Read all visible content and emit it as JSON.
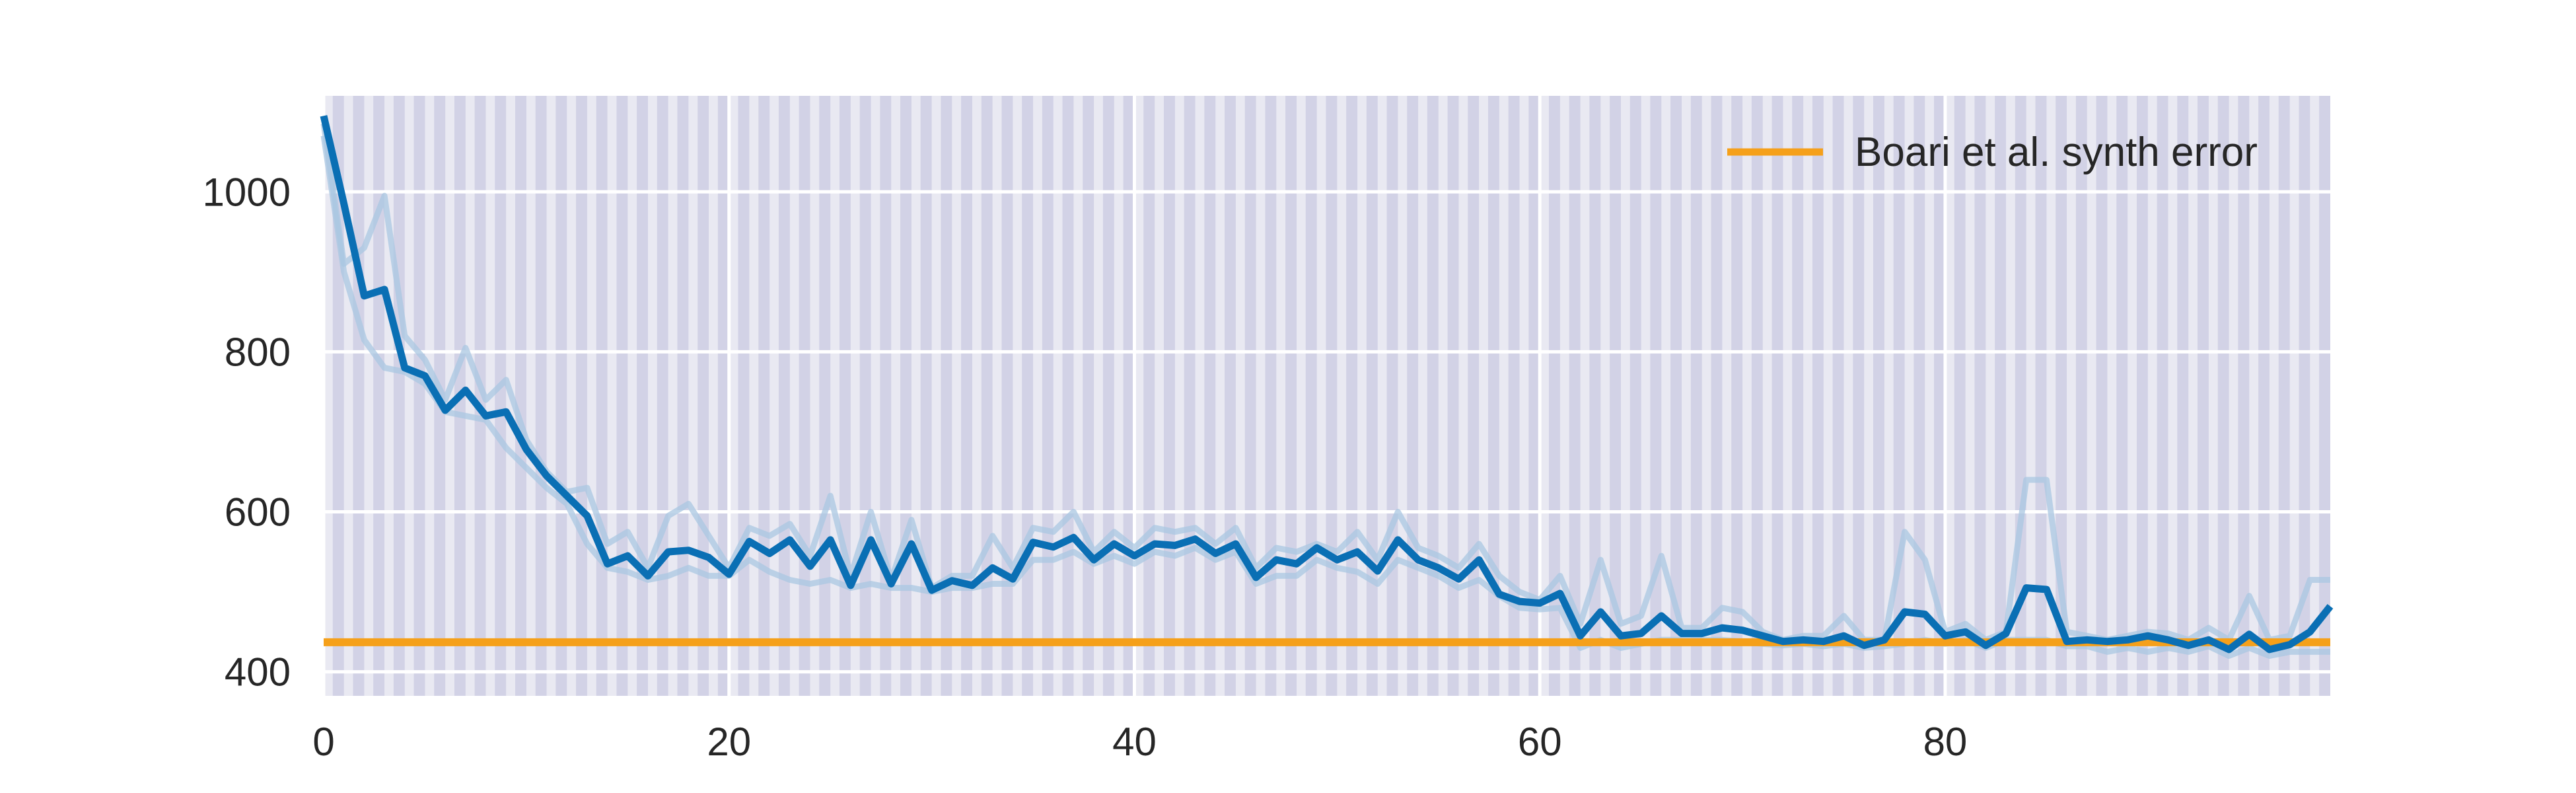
{
  "chart_data": {
    "type": "line",
    "title": "",
    "xlabel": "",
    "ylabel": "",
    "xlim": [
      0,
      99
    ],
    "ylim": [
      370,
      1120
    ],
    "xticks": [
      0,
      20,
      40,
      60,
      80
    ],
    "yticks": [
      400,
      600,
      800,
      1000
    ],
    "xtick_labels": [
      "0",
      "20",
      "40",
      "60",
      "80"
    ],
    "ytick_labels": [
      "400",
      "600",
      "800",
      "1000"
    ],
    "grid": true,
    "legend": {
      "placement": "top-right",
      "entries": [
        "Boari et al. synth error"
      ]
    },
    "colors": {
      "plot_background": "#e9e9f2",
      "stripe": "#d2d2e6",
      "grid": "#ffffff",
      "mean_line": "#0a6fb4",
      "faint_lines": "#a9c7e2",
      "reference_line": "#f5a01a"
    },
    "x": [
      0,
      1,
      2,
      3,
      4,
      5,
      6,
      7,
      8,
      9,
      10,
      11,
      12,
      13,
      14,
      15,
      16,
      17,
      18,
      19,
      20,
      21,
      22,
      23,
      24,
      25,
      26,
      27,
      28,
      29,
      30,
      31,
      32,
      33,
      34,
      35,
      36,
      37,
      38,
      39,
      40,
      41,
      42,
      43,
      44,
      45,
      46,
      47,
      48,
      49,
      50,
      51,
      52,
      53,
      54,
      55,
      56,
      57,
      58,
      59,
      60,
      61,
      62,
      63,
      64,
      65,
      66,
      67,
      68,
      69,
      70,
      71,
      72,
      73,
      74,
      75,
      76,
      77,
      78,
      79,
      80,
      81,
      82,
      83,
      84,
      85,
      86,
      87,
      88,
      89,
      90,
      91,
      92,
      93,
      94,
      95,
      96,
      97,
      98,
      99
    ],
    "series": [
      {
        "role": "mean",
        "values": [
          1095,
          985,
          870,
          878,
          780,
          770,
          727,
          752,
          720,
          725,
          678,
          645,
          620,
          595,
          535,
          545,
          520,
          550,
          552,
          543,
          522,
          563,
          548,
          565,
          532,
          565,
          508,
          565,
          510,
          560,
          502,
          514,
          508,
          530,
          516,
          562,
          556,
          568,
          540,
          560,
          545,
          560,
          558,
          566,
          548,
          560,
          518,
          540,
          535,
          555,
          540,
          550,
          526,
          565,
          540,
          530,
          516,
          540,
          497,
          488,
          486,
          498,
          445,
          475,
          445,
          448,
          470,
          448,
          448,
          455,
          452,
          445,
          438,
          440,
          438,
          445,
          433,
          440,
          475,
          472,
          445,
          450,
          433,
          448,
          505,
          503,
          438,
          440,
          438,
          440,
          445,
          440,
          433,
          440,
          428,
          447,
          428,
          434,
          450,
          482
        ]
      },
      {
        "role": "run",
        "values": [
          1085,
          910,
          930,
          995,
          820,
          790,
          740,
          805,
          740,
          765,
          690,
          650,
          625,
          630,
          560,
          575,
          530,
          595,
          610,
          570,
          530,
          580,
          570,
          585,
          545,
          620,
          520,
          600,
          515,
          590,
          505,
          520,
          520,
          570,
          530,
          580,
          575,
          600,
          550,
          575,
          555,
          580,
          575,
          580,
          560,
          580,
          530,
          555,
          550,
          560,
          550,
          575,
          540,
          600,
          555,
          545,
          530,
          560,
          520,
          500,
          490,
          520,
          460,
          540,
          460,
          470,
          545,
          455,
          455,
          480,
          475,
          450,
          440,
          445,
          445,
          470,
          440,
          440,
          575,
          540,
          450,
          460,
          440,
          450,
          640,
          640,
          450,
          445,
          440,
          445,
          450,
          448,
          440,
          455,
          440,
          495,
          440,
          445,
          515,
          515
        ]
      },
      {
        "role": "run",
        "values": [
          1070,
          900,
          815,
          780,
          775,
          760,
          725,
          720,
          715,
          680,
          655,
          630,
          610,
          560,
          530,
          525,
          515,
          520,
          530,
          520,
          520,
          540,
          525,
          515,
          510,
          515,
          505,
          510,
          505,
          505,
          500,
          505,
          505,
          510,
          510,
          540,
          540,
          550,
          535,
          545,
          535,
          550,
          545,
          555,
          540,
          550,
          510,
          520,
          520,
          540,
          530,
          525,
          510,
          540,
          530,
          520,
          505,
          515,
          495,
          480,
          478,
          480,
          430,
          440,
          430,
          435,
          440,
          440,
          440,
          440,
          438,
          435,
          433,
          435,
          432,
          435,
          430,
          432,
          435,
          440,
          435,
          440,
          430,
          440,
          440,
          440,
          432,
          432,
          425,
          430,
          425,
          430,
          425,
          432,
          420,
          430,
          420,
          425,
          425,
          425
        ]
      }
    ],
    "reference_lines": [
      {
        "name": "Boari et al. synth error",
        "y": 437
      }
    ]
  }
}
